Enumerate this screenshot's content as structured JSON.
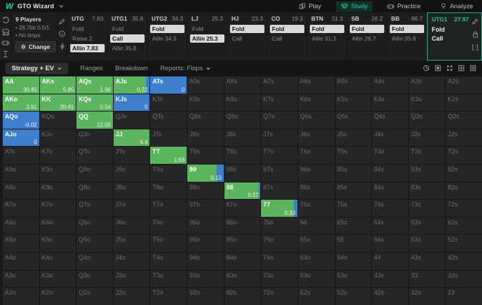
{
  "colors": {
    "accent": "#25c3a3",
    "raise_green": "#5cb55e",
    "call_blue": "#3d7ecd",
    "cell_dark": "#262626",
    "selected_chip": "#d9d9d9"
  },
  "header": {
    "app_name": "GTO Wizard",
    "nav": [
      {
        "label": "Play",
        "icon": "cards-icon",
        "active": false
      },
      {
        "label": "Study",
        "icon": "graduation-cap-icon",
        "active": true
      },
      {
        "label": "Practice",
        "icon": "gamepad-icon",
        "active": false
      },
      {
        "label": "Analyze",
        "icon": "bulb-icon",
        "active": false
      }
    ]
  },
  "game_info": {
    "players": "9 Players",
    "stakes": "• 26.7bb 0.5/1",
    "limps": "• No limps",
    "change_label": "Change"
  },
  "left_rail_icons": [
    "history-icon",
    "save-icon",
    "gamepad-icon",
    "text-cursor-icon"
  ],
  "tool_rail_icons": [
    "pencil-icon",
    "info-icon",
    "lightning-icon"
  ],
  "players": [
    {
      "name": "UTG",
      "value": "7.83",
      "actions": [
        {
          "label": "Fold"
        },
        {
          "label": "Raise 2"
        },
        {
          "label": "Allin 7.83",
          "selected": true
        }
      ]
    },
    {
      "name": "UTG1",
      "value": "35.8",
      "actions": [
        {
          "label": "Fold"
        },
        {
          "label": "Call",
          "selected": true
        },
        {
          "label": "Allin 35.8"
        }
      ]
    },
    {
      "name": "UTG2",
      "value": "34.3",
      "actions": [
        {
          "label": "Fold",
          "selected": true
        },
        {
          "label": "Allin 34.3"
        }
      ]
    },
    {
      "name": "LJ",
      "value": "25.3",
      "actions": [
        {
          "label": "Fold"
        },
        {
          "label": "Allin 25.3",
          "selected": true
        }
      ]
    },
    {
      "name": "HJ",
      "value": "23.3",
      "actions": [
        {
          "label": "Fold",
          "selected": true
        },
        {
          "label": "Call"
        }
      ]
    },
    {
      "name": "CO",
      "value": "19.3",
      "actions": [
        {
          "label": "Fold",
          "selected": true
        },
        {
          "label": "Call"
        }
      ]
    },
    {
      "name": "BTN",
      "value": "31.3",
      "actions": [
        {
          "label": "Fold",
          "selected": true
        },
        {
          "label": "Allin 31.3"
        }
      ]
    },
    {
      "name": "SB",
      "value": "26.2",
      "actions": [
        {
          "label": "Fold",
          "selected": true
        },
        {
          "label": "Allin 26.7"
        }
      ]
    },
    {
      "name": "BB",
      "value": "86.7",
      "actions": [
        {
          "label": "Fold",
          "selected": true
        },
        {
          "label": "Allin 35.8"
        }
      ]
    }
  ],
  "active_player": {
    "name": "UTG1",
    "value": "27.97",
    "actions": [
      "Fold",
      "Call"
    ],
    "icons": [
      "pencil-icon",
      "lock-icon",
      "range-brackets-icon"
    ]
  },
  "toolbar": {
    "tabs": [
      {
        "label": "Strategy + EV",
        "dropdown": true,
        "active": true
      },
      {
        "label": "Ranges",
        "dropdown": false,
        "active": false
      },
      {
        "label": "Breakdown",
        "dropdown": false,
        "active": false
      },
      {
        "label": "Reports: Flops",
        "dropdown": true,
        "active": false
      }
    ],
    "right_icons": [
      "pie-chart-icon",
      "filled-square-icon",
      "dots-grid-icon",
      "table-icon",
      "framed-square-icon"
    ]
  },
  "grid": {
    "ranks": [
      "A",
      "K",
      "Q",
      "J",
      "T",
      "9",
      "8",
      "7",
      "6",
      "5",
      "4",
      "3",
      "2"
    ],
    "cells": {
      "AA": {
        "ev": "30.45",
        "raise_pct": 100
      },
      "AKs": {
        "ev": "5.85",
        "raise_pct": 100
      },
      "AQs": {
        "ev": "1.96",
        "raise_pct": 100
      },
      "AJs": {
        "ev": "0.22",
        "raise_pct": 90
      },
      "ATs": {
        "ev": "0",
        "raise_pct": 0
      },
      "AKo": {
        "ev": "3.91",
        "raise_pct": 100
      },
      "KK": {
        "ev": "20.41",
        "raise_pct": 100
      },
      "KQs": {
        "ev": "0.54",
        "raise_pct": 100
      },
      "KJs": {
        "ev": "0",
        "raise_pct": 0
      },
      "AQo": {
        "ev": "-0.02",
        "raise_pct": 0
      },
      "QQ": {
        "ev": "12.05",
        "raise_pct": 100
      },
      "AJo": {
        "ev": "0",
        "raise_pct": 0
      },
      "JJ": {
        "ev": "6.4",
        "raise_pct": 100
      },
      "TT": {
        "ev": "1.63",
        "raise_pct": 100
      },
      "99": {
        "ev": "0.13",
        "raise_pct": 80
      },
      "88": {
        "ev": "0.37",
        "raise_pct": 95
      },
      "77": {
        "ev": "0.33",
        "raise_pct": 90
      }
    }
  }
}
